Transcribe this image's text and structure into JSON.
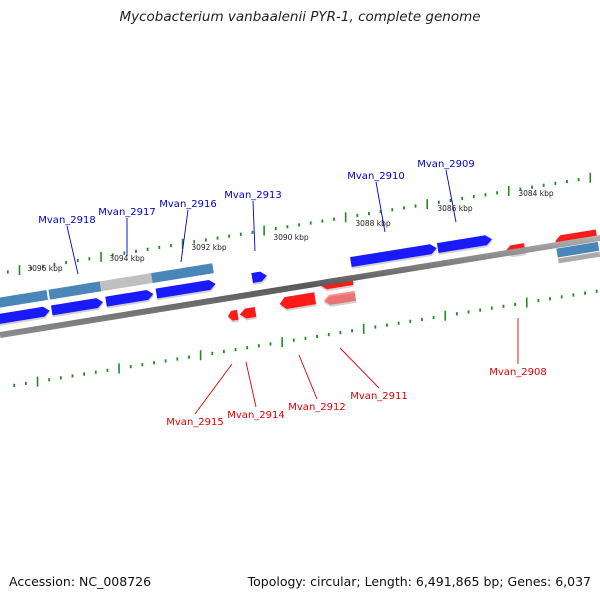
{
  "title": "Mycobacterium vanbaalenii PYR-1, complete genome",
  "footer": {
    "accession": "Accession: NC_008726",
    "topology": "Topology: circular; Length: 6,491,865 bp; Genes: 6,037"
  },
  "colors": {
    "forward_gene": "#1a1aff",
    "reverse_gene": "#ff1a1a",
    "forward_label": "#0000cc",
    "reverse_label": "#dd0000",
    "tick": "#228b22",
    "backbone": "#777777",
    "feature_steel": "#4a86b8",
    "feature_grey": "#c0c0c0"
  },
  "scale": {
    "ticks": [
      "3096 kbp",
      "3094 kbp",
      "3092 kbp",
      "3090 kbp",
      "3088 kbp",
      "3086 kbp",
      "3084 kbp"
    ]
  },
  "genes": {
    "forward": [
      "Mvan_2918",
      "Mvan_2917",
      "Mvan_2916",
      "Mvan_2913",
      "Mvan_2910",
      "Mvan_2909"
    ],
    "reverse": [
      "Mvan_2915",
      "Mvan_2914",
      "Mvan_2912",
      "Mvan_2911",
      "Mvan_2908"
    ]
  }
}
